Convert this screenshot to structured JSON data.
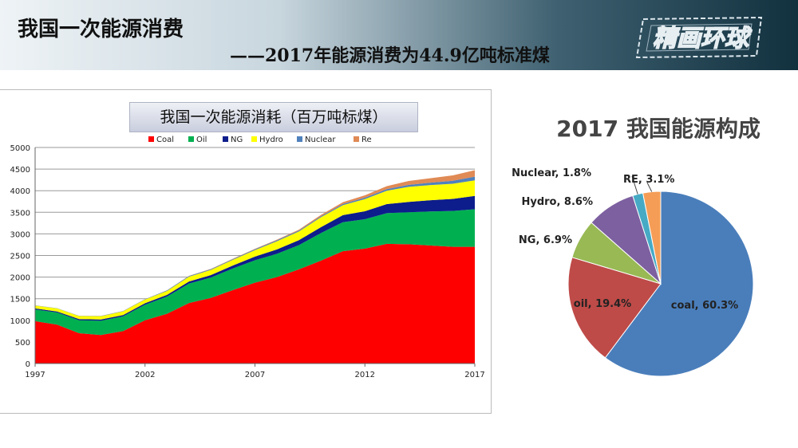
{
  "header": {
    "title": "我国一次能源消费",
    "subtitle": "——2017年能源消费为44.9亿吨标准煤",
    "logo_text": "精画环球"
  },
  "chart_data": [
    {
      "type": "area",
      "title": "我国一次能源消耗（百万吨标煤）",
      "x": [
        1997,
        1998,
        1999,
        2000,
        2001,
        2002,
        2003,
        2004,
        2005,
        2006,
        2007,
        2008,
        2009,
        2010,
        2011,
        2012,
        2013,
        2014,
        2015,
        2016,
        2017
      ],
      "x_ticks": [
        "1997",
        "2002",
        "2007",
        "2012",
        "2017"
      ],
      "ylim": [
        0,
        5000
      ],
      "y_ticks": [
        "0",
        "500",
        "1000",
        "1500",
        "2000",
        "2500",
        "3000",
        "3500",
        "4000",
        "4500",
        "5000"
      ],
      "stacked": true,
      "grid": true,
      "legend_position": "top",
      "series": [
        {
          "name": "Coal",
          "color": "#ff0000",
          "values": [
            980,
            900,
            700,
            660,
            750,
            1000,
            1150,
            1400,
            1520,
            1700,
            1870,
            2000,
            2180,
            2380,
            2600,
            2660,
            2770,
            2760,
            2730,
            2700,
            2700
          ]
        },
        {
          "name": "Oil",
          "color": "#00b050",
          "values": [
            270,
            280,
            300,
            330,
            340,
            360,
            400,
            450,
            470,
            500,
            520,
            540,
            560,
            640,
            670,
            680,
            710,
            740,
            790,
            830,
            870
          ]
        },
        {
          "name": "NG",
          "color": "#0d1d8c",
          "values": [
            25,
            25,
            28,
            30,
            32,
            35,
            40,
            48,
            58,
            70,
            85,
            100,
            115,
            135,
            165,
            185,
            210,
            240,
            260,
            280,
            310
          ]
        },
        {
          "name": "Hydro",
          "color": "#ffff00",
          "values": [
            65,
            70,
            70,
            75,
            85,
            85,
            90,
            110,
            120,
            130,
            150,
            190,
            200,
            230,
            230,
            280,
            310,
            350,
            350,
            350,
            360
          ]
        },
        {
          "name": "Nuclear",
          "color": "#4f81bd",
          "values": [
            5,
            5,
            5,
            6,
            6,
            8,
            12,
            16,
            17,
            18,
            20,
            22,
            23,
            24,
            28,
            32,
            35,
            45,
            55,
            70,
            85
          ]
        },
        {
          "name": "Re",
          "color": "#e08a55",
          "values": [
            1,
            1,
            2,
            2,
            3,
            3,
            4,
            5,
            6,
            8,
            10,
            15,
            20,
            30,
            40,
            55,
            70,
            90,
            105,
            125,
            150
          ]
        }
      ]
    },
    {
      "type": "pie",
      "title": "2017 我国能源构成",
      "slices": [
        {
          "label": "coal, 60.3%",
          "value": 60.3,
          "color": "#4a7ebb"
        },
        {
          "label": "oil, 19.4%",
          "value": 19.4,
          "color": "#be4b48"
        },
        {
          "label": "NG, 6.9%",
          "value": 6.9,
          "color": "#98b954"
        },
        {
          "label": "Hydro, 8.6%",
          "value": 8.6,
          "color": "#7d60a0"
        },
        {
          "label": "Nuclear, 1.8%",
          "value": 1.8,
          "color": "#46aac5"
        },
        {
          "label": "RE, 3.1%",
          "value": 3.1,
          "color": "#f59d56"
        }
      ]
    }
  ]
}
